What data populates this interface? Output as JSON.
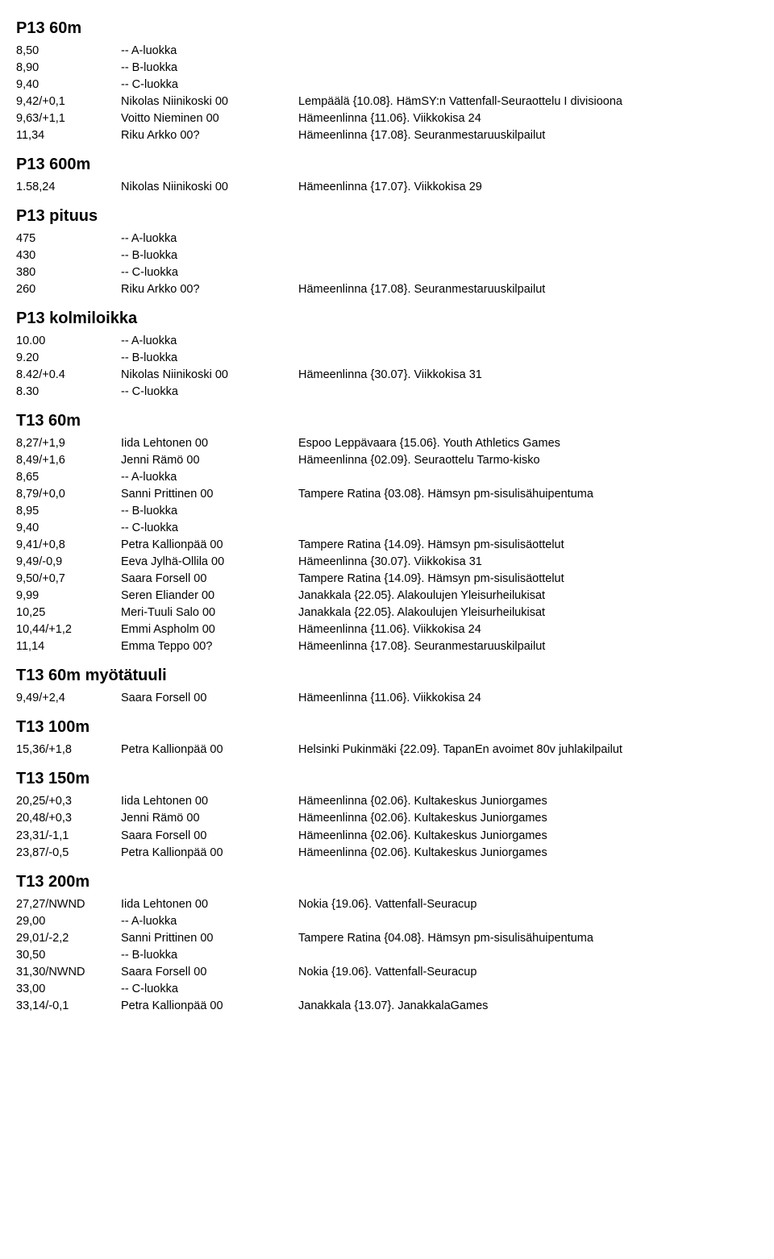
{
  "sections": [
    {
      "title": "P13 60m",
      "rows": [
        {
          "c1": "8,50",
          "c2": "-- A-luokka",
          "c3": ""
        },
        {
          "c1": "8,90",
          "c2": "-- B-luokka",
          "c3": ""
        },
        {
          "c1": "9,40",
          "c2": "-- C-luokka",
          "c3": ""
        },
        {
          "c1": "9,42/+0,1",
          "c2": "Nikolas Niinikoski 00",
          "c3": "Lempäälä {10.08}. HämSY:n Vattenfall-Seuraottelu I divisioona"
        },
        {
          "c1": "9,63/+1,1",
          "c2": "Voitto Nieminen 00",
          "c3": "Hämeenlinna {11.06}. Viikkokisa 24"
        },
        {
          "c1": "11,34",
          "c2": "Riku Arkko 00?",
          "c3": "Hämeenlinna {17.08}. Seuranmestaruuskilpailut"
        }
      ]
    },
    {
      "title": "P13 600m",
      "rows": [
        {
          "c1": "1.58,24",
          "c2": "Nikolas Niinikoski 00",
          "c3": "Hämeenlinna {17.07}. Viikkokisa 29"
        }
      ]
    },
    {
      "title": "P13 pituus",
      "rows": [
        {
          "c1": "475",
          "c2": "-- A-luokka",
          "c3": ""
        },
        {
          "c1": "430",
          "c2": "-- B-luokka",
          "c3": ""
        },
        {
          "c1": "380",
          "c2": "-- C-luokka",
          "c3": ""
        },
        {
          "c1": "260",
          "c2": "Riku Arkko 00?",
          "c3": "Hämeenlinna {17.08}. Seuranmestaruuskilpailut"
        }
      ]
    },
    {
      "title": "P13 kolmiloikka",
      "rows": [
        {
          "c1": "10.00",
          "c2": "-- A-luokka",
          "c3": ""
        },
        {
          "c1": "9.20",
          "c2": "-- B-luokka",
          "c3": ""
        },
        {
          "c1": "8.42/+0.4",
          "c2": "Nikolas Niinikoski 00",
          "c3": "Hämeenlinna {30.07}. Viikkokisa 31"
        },
        {
          "c1": "8.30",
          "c2": "-- C-luokka",
          "c3": ""
        }
      ]
    },
    {
      "title": "T13 60m",
      "rows": [
        {
          "c1": "8,27/+1,9",
          "c2": "Iida Lehtonen 00",
          "c3": "Espoo Leppävaara {15.06}. Youth Athletics Games"
        },
        {
          "c1": "8,49/+1,6",
          "c2": "Jenni Rämö 00",
          "c3": "Hämeenlinna {02.09}. Seuraottelu Tarmo-kisko"
        },
        {
          "c1": "8,65",
          "c2": "-- A-luokka",
          "c3": ""
        },
        {
          "c1": "8,79/+0,0",
          "c2": "Sanni Prittinen 00",
          "c3": "Tampere Ratina {03.08}. Hämsyn pm-sisulisähuipentuma"
        },
        {
          "c1": "8,95",
          "c2": "-- B-luokka",
          "c3": ""
        },
        {
          "c1": "9,40",
          "c2": "-- C-luokka",
          "c3": ""
        },
        {
          "c1": "9,41/+0,8",
          "c2": "Petra Kallionpää 00",
          "c3": "Tampere Ratina {14.09}. Hämsyn pm-sisulisäottelut"
        },
        {
          "c1": "9,49/-0,9",
          "c2": "Eeva Jylhä-Ollila 00",
          "c3": "Hämeenlinna {30.07}. Viikkokisa 31"
        },
        {
          "c1": "9,50/+0,7",
          "c2": "Saara Forsell 00",
          "c3": "Tampere Ratina {14.09}. Hämsyn pm-sisulisäottelut"
        },
        {
          "c1": "9,99",
          "c2": "Seren Eliander 00",
          "c3": "Janakkala {22.05}. Alakoulujen Yleisurheilukisat"
        },
        {
          "c1": "10,25",
          "c2": "Meri-Tuuli Salo 00",
          "c3": "Janakkala {22.05}. Alakoulujen Yleisurheilukisat"
        },
        {
          "c1": "10,44/+1,2",
          "c2": "Emmi Aspholm 00",
          "c3": "Hämeenlinna {11.06}. Viikkokisa 24"
        },
        {
          "c1": "11,14",
          "c2": "Emma Teppo 00?",
          "c3": "Hämeenlinna {17.08}. Seuranmestaruuskilpailut"
        }
      ]
    },
    {
      "title": "T13 60m myötätuuli",
      "rows": [
        {
          "c1": "9,49/+2,4",
          "c2": "Saara Forsell 00",
          "c3": "Hämeenlinna {11.06}. Viikkokisa 24"
        }
      ]
    },
    {
      "title": "T13 100m",
      "rows": [
        {
          "c1": "15,36/+1,8",
          "c2": "Petra Kallionpää 00",
          "c3": "Helsinki Pukinmäki {22.09}. TapanEn avoimet 80v juhlakilpailut"
        }
      ]
    },
    {
      "title": "T13 150m",
      "rows": [
        {
          "c1": "20,25/+0,3",
          "c2": "Iida Lehtonen 00",
          "c3": "Hämeenlinna {02.06}. Kultakeskus Juniorgames"
        },
        {
          "c1": "20,48/+0,3",
          "c2": "Jenni Rämö 00",
          "c3": "Hämeenlinna {02.06}. Kultakeskus Juniorgames"
        },
        {
          "c1": "23,31/-1,1",
          "c2": "Saara Forsell 00",
          "c3": "Hämeenlinna {02.06}. Kultakeskus Juniorgames"
        },
        {
          "c1": "23,87/-0,5",
          "c2": "Petra Kallionpää 00",
          "c3": "Hämeenlinna {02.06}. Kultakeskus Juniorgames"
        }
      ]
    },
    {
      "title": "T13 200m",
      "rows": [
        {
          "c1": "27,27/NWND",
          "c2": "Iida Lehtonen 00",
          "c3": "Nokia {19.06}. Vattenfall-Seuracup"
        },
        {
          "c1": "29,00",
          "c2": "-- A-luokka",
          "c3": ""
        },
        {
          "c1": "29,01/-2,2",
          "c2": "Sanni Prittinen 00",
          "c3": "Tampere Ratina {04.08}. Hämsyn pm-sisulisähuipentuma"
        },
        {
          "c1": "30,50",
          "c2": "-- B-luokka",
          "c3": ""
        },
        {
          "c1": "31,30/NWND",
          "c2": "Saara Forsell 00",
          "c3": "Nokia {19.06}. Vattenfall-Seuracup"
        },
        {
          "c1": "33,00",
          "c2": "-- C-luokka",
          "c3": ""
        },
        {
          "c1": "33,14/-0,1",
          "c2": "Petra Kallionpää 00",
          "c3": "Janakkala {13.07}. JanakkalaGames"
        }
      ]
    }
  ]
}
